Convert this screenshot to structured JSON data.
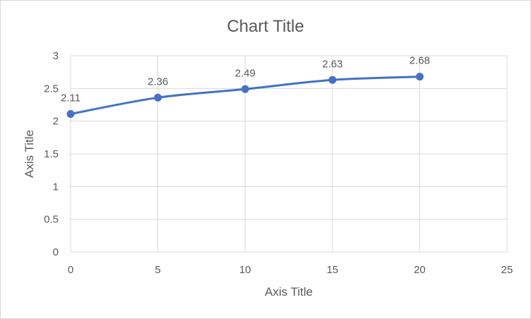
{
  "chart_data": {
    "type": "scatter",
    "title": "Chart Title",
    "xlabel": "Axis Title",
    "ylabel": "Axis Title",
    "xlim": [
      0,
      25
    ],
    "ylim": [
      0,
      3
    ],
    "xticks": [
      0,
      5,
      10,
      15,
      20,
      25
    ],
    "yticks": [
      0,
      0.5,
      1,
      1.5,
      2,
      2.5,
      3
    ],
    "grid": true,
    "legend": "none",
    "smooth": true,
    "series": [
      {
        "x": [
          0,
          5,
          10,
          15,
          20
        ],
        "y": [
          2.11,
          2.36,
          2.49,
          2.63,
          2.68
        ],
        "labels": [
          "2.11",
          "2.36",
          "2.49",
          "2.63",
          "2.68"
        ],
        "color": "#4472c4"
      }
    ]
  },
  "colors": {
    "series": "#4472c4",
    "grid": "#d9d9d9",
    "text": "#595959"
  }
}
